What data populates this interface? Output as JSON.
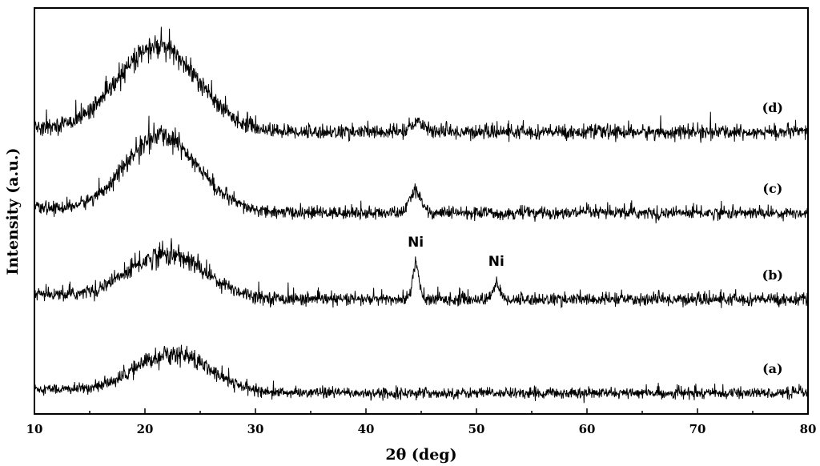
{
  "chart_data": {
    "type": "line",
    "xlabel": "2θ (deg)",
    "ylabel": "Intensity (a.u.)",
    "xlim": [
      10,
      80
    ],
    "xticks": [
      10,
      20,
      30,
      40,
      50,
      60,
      70,
      80
    ],
    "yticks_shown": false,
    "grid": false,
    "legend": "none",
    "line_color": "#000000",
    "series": [
      {
        "label": "(a)",
        "offset": 0,
        "baseline": 14,
        "noise": 6,
        "peaks": [
          {
            "center": 22.5,
            "height": 48,
            "width": 3.3,
            "type": "broad"
          }
        ]
      },
      {
        "label": "(b)",
        "offset": 115,
        "baseline": 16,
        "noise": 7,
        "peaks": [
          {
            "center": 22.0,
            "height": 55,
            "width": 3.5,
            "type": "broad"
          },
          {
            "center": 44.5,
            "height": 44,
            "width": 0.28,
            "type": "sharp"
          },
          {
            "center": 51.8,
            "height": 20,
            "width": 0.3,
            "type": "sharp"
          }
        ]
      },
      {
        "label": "(c)",
        "offset": 225,
        "baseline": 14,
        "noise": 7,
        "peaks": [
          {
            "center": 21.5,
            "height": 95,
            "width": 3.3,
            "type": "broad"
          },
          {
            "center": 44.5,
            "height": 28,
            "width": 0.5,
            "type": "sharp"
          }
        ]
      },
      {
        "label": "(d)",
        "offset": 325,
        "baseline": 15,
        "noise": 8,
        "peaks": [
          {
            "center": 21.2,
            "height": 105,
            "width": 3.6,
            "type": "broad"
          },
          {
            "center": 44.8,
            "height": 12,
            "width": 0.6,
            "type": "sharp"
          }
        ]
      }
    ],
    "annotations": [
      {
        "text": "Ni",
        "x": 44.5,
        "series": "(b)"
      },
      {
        "text": "Ni",
        "x": 51.8,
        "series": "(b)"
      }
    ]
  }
}
